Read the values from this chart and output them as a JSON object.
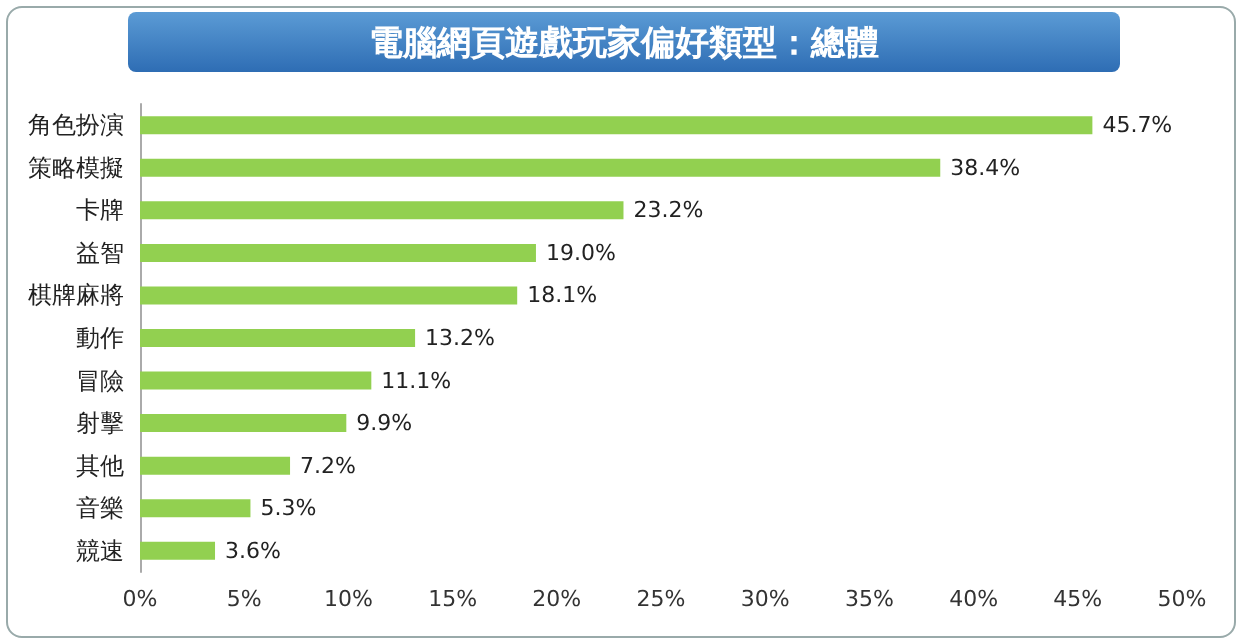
{
  "chart_data": {
    "type": "bar",
    "orientation": "horizontal",
    "title": "電腦網頁遊戲玩家偏好類型：總體",
    "categories": [
      "角色扮演",
      "策略模擬",
      "卡牌",
      "益智",
      "棋牌麻將",
      "動作",
      "冒險",
      "射擊",
      "其他",
      "音樂",
      "競速"
    ],
    "values": [
      45.7,
      38.4,
      23.2,
      19.0,
      18.1,
      13.2,
      11.1,
      9.9,
      7.2,
      5.3,
      3.6
    ],
    "value_labels": [
      "45.7%",
      "38.4%",
      "23.2%",
      "19.0%",
      "18.1%",
      "13.2%",
      "11.1%",
      "9.9%",
      "7.2%",
      "5.3%",
      "3.6%"
    ],
    "color": "#92d050",
    "xlim": [
      0,
      50
    ],
    "xticks": [
      {
        "value": 0,
        "label": "0%"
      },
      {
        "value": 5,
        "label": "5%"
      },
      {
        "value": 10,
        "label": "10%"
      },
      {
        "value": 15,
        "label": "15%"
      },
      {
        "value": 20,
        "label": "20%"
      },
      {
        "value": 25,
        "label": "25%"
      },
      {
        "value": 30,
        "label": "30%"
      },
      {
        "value": 35,
        "label": "35%"
      },
      {
        "value": 40,
        "label": "40%"
      },
      {
        "value": 45,
        "label": "45%"
      },
      {
        "value": 50,
        "label": "50%"
      }
    ],
    "grid": false
  }
}
